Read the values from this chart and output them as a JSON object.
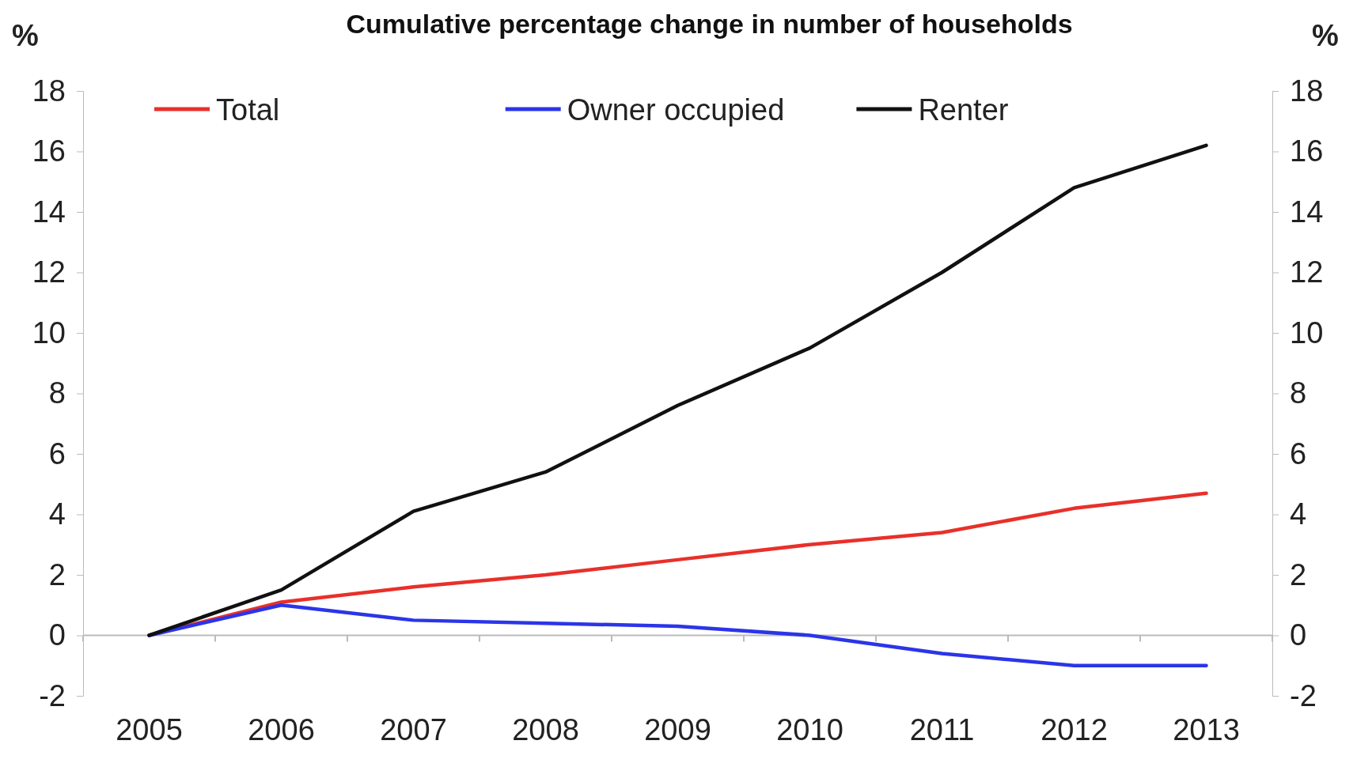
{
  "chart_data": {
    "type": "line",
    "title": "Cumulative percentage change in number of households",
    "ylabel": "%",
    "y2label": "%",
    "categories": [
      "2005",
      "2006",
      "2007",
      "2008",
      "2009",
      "2010",
      "2011",
      "2012",
      "2013"
    ],
    "series": [
      {
        "name": "Total",
        "color": "#e8302a",
        "values": [
          0,
          1.1,
          1.6,
          2.0,
          2.5,
          3.0,
          3.4,
          4.2,
          4.7
        ]
      },
      {
        "name": "Owner occupied",
        "color": "#2b35e8",
        "values": [
          0,
          1.0,
          0.5,
          0.4,
          0.3,
          0.0,
          -0.6,
          -1.0,
          -1.0
        ]
      },
      {
        "name": "Renter",
        "color": "#111111",
        "values": [
          0,
          1.5,
          4.1,
          5.4,
          7.6,
          9.5,
          12.0,
          14.8,
          16.2
        ]
      }
    ],
    "ylim": [
      -2,
      18
    ],
    "yticks": [
      -2,
      0,
      2,
      4,
      6,
      8,
      10,
      12,
      14,
      16,
      18
    ],
    "y2lim": [
      -2,
      18
    ],
    "y2ticks": [
      -2,
      0,
      2,
      4,
      6,
      8,
      10,
      12,
      14,
      16,
      18
    ],
    "legend": "top",
    "grid": false,
    "marker": "none",
    "line_style": "solid"
  }
}
